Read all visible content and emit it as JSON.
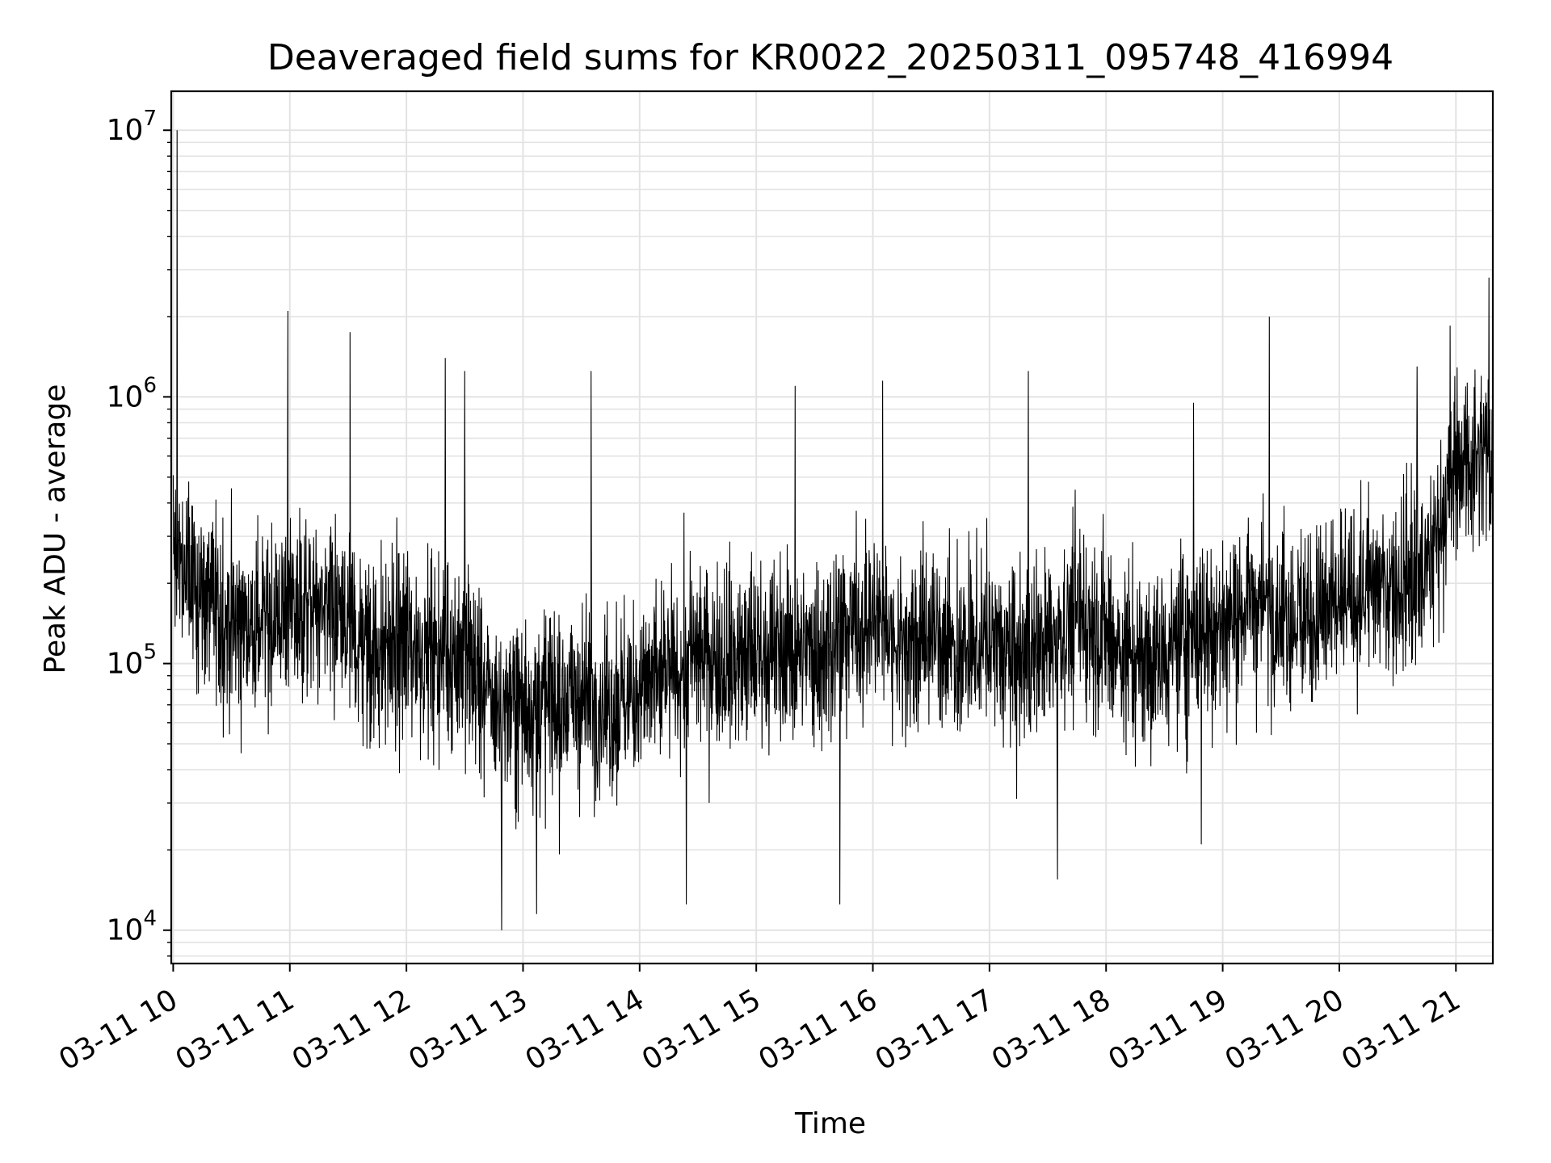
{
  "chart_data": {
    "type": "line",
    "title": "Deaveraged field sums for KR0022_20250311_095748_416994",
    "xlabel": "Time",
    "ylabel": "Peak ADU - average",
    "yscale": "log",
    "ylim": [
      7500,
      14000000
    ],
    "xlim": [
      "2025-03-11 09:59",
      "2025-03-11 21:19"
    ],
    "grid": true,
    "color": "#000000",
    "x_ticks": [
      {
        "t": "2025-03-11 10:00",
        "label": "03-11 10"
      },
      {
        "t": "2025-03-11 11:00",
        "label": "03-11 11"
      },
      {
        "t": "2025-03-11 12:00",
        "label": "03-11 12"
      },
      {
        "t": "2025-03-11 13:00",
        "label": "03-11 13"
      },
      {
        "t": "2025-03-11 14:00",
        "label": "03-11 14"
      },
      {
        "t": "2025-03-11 15:00",
        "label": "03-11 15"
      },
      {
        "t": "2025-03-11 16:00",
        "label": "03-11 16"
      },
      {
        "t": "2025-03-11 17:00",
        "label": "03-11 17"
      },
      {
        "t": "2025-03-11 18:00",
        "label": "03-11 18"
      },
      {
        "t": "2025-03-11 19:00",
        "label": "03-11 19"
      },
      {
        "t": "2025-03-11 20:00",
        "label": "03-11 20"
      },
      {
        "t": "2025-03-11 21:00",
        "label": "03-11 21"
      }
    ],
    "y_ticks": [
      {
        "value": 10000,
        "base": "10",
        "exp": "4"
      },
      {
        "value": 100000,
        "base": "10",
        "exp": "5"
      },
      {
        "value": 1000000,
        "base": "10",
        "exp": "6"
      },
      {
        "value": 10000000,
        "base": "10",
        "exp": "7"
      }
    ],
    "series": [
      {
        "x": [
          "2025-03-11 10:00",
          "2025-03-11 10:15",
          "2025-03-11 10:30",
          "2025-03-11 10:45",
          "2025-03-11 11:00",
          "2025-03-11 11:15",
          "2025-03-11 11:30",
          "2025-03-11 11:45",
          "2025-03-11 12:00",
          "2025-03-11 12:15",
          "2025-03-11 12:30",
          "2025-03-11 12:45",
          "2025-03-11 13:00",
          "2025-03-11 13:15",
          "2025-03-11 13:30",
          "2025-03-11 13:45",
          "2025-03-11 14:00",
          "2025-03-11 14:15",
          "2025-03-11 14:30",
          "2025-03-11 14:45",
          "2025-03-11 15:00",
          "2025-03-11 15:15",
          "2025-03-11 15:30",
          "2025-03-11 15:45",
          "2025-03-11 16:00",
          "2025-03-11 16:15",
          "2025-03-11 16:30",
          "2025-03-11 16:45",
          "2025-03-11 17:00",
          "2025-03-11 17:15",
          "2025-03-11 17:30",
          "2025-03-11 17:45",
          "2025-03-11 18:00",
          "2025-03-11 18:15",
          "2025-03-11 18:30",
          "2025-03-11 18:45",
          "2025-03-11 19:00",
          "2025-03-11 19:15",
          "2025-03-11 19:30",
          "2025-03-11 19:45",
          "2025-03-11 20:00",
          "2025-03-11 20:15",
          "2025-03-11 20:30",
          "2025-03-11 20:45",
          "2025-03-11 21:00",
          "2025-03-11 21:15"
        ],
        "values": [
          250000,
          180000,
          140000,
          140000,
          160000,
          160000,
          130000,
          110000,
          120000,
          110000,
          110000,
          70000,
          70000,
          70000,
          75000,
          70000,
          80000,
          90000,
          110000,
          100000,
          110000,
          110000,
          110000,
          130000,
          150000,
          120000,
          130000,
          110000,
          120000,
          100000,
          120000,
          150000,
          130000,
          100000,
          110000,
          130000,
          140000,
          170000,
          160000,
          150000,
          160000,
          190000,
          200000,
          220000,
          550000,
          600000
        ],
        "spikes": [
          {
            "t": "2025-03-11 10:02",
            "value": 10000000
          },
          {
            "t": "2025-03-11 10:59",
            "value": 2100000
          },
          {
            "t": "2025-03-11 11:31",
            "value": 1750000
          },
          {
            "t": "2025-03-11 12:20",
            "value": 1400000
          },
          {
            "t": "2025-03-11 12:30",
            "value": 1250000
          },
          {
            "t": "2025-03-11 13:35",
            "value": 1250000
          },
          {
            "t": "2025-03-11 15:20",
            "value": 1100000
          },
          {
            "t": "2025-03-11 16:05",
            "value": 1150000
          },
          {
            "t": "2025-03-11 17:20",
            "value": 1250000
          },
          {
            "t": "2025-03-11 18:45",
            "value": 950000
          },
          {
            "t": "2025-03-11 19:24",
            "value": 2000000
          },
          {
            "t": "2025-03-11 20:40",
            "value": 1300000
          },
          {
            "t": "2025-03-11 20:57",
            "value": 1850000
          },
          {
            "t": "2025-03-11 21:17",
            "value": 2800000
          },
          {
            "t": "2025-03-11 12:49",
            "value": 10000
          },
          {
            "t": "2025-03-11 13:07",
            "value": 11500
          },
          {
            "t": "2025-03-11 14:24",
            "value": 12500
          },
          {
            "t": "2025-03-11 15:43",
            "value": 12500
          },
          {
            "t": "2025-03-11 17:35",
            "value": 15500
          },
          {
            "t": "2025-03-11 18:49",
            "value": 21000
          }
        ]
      }
    ]
  }
}
